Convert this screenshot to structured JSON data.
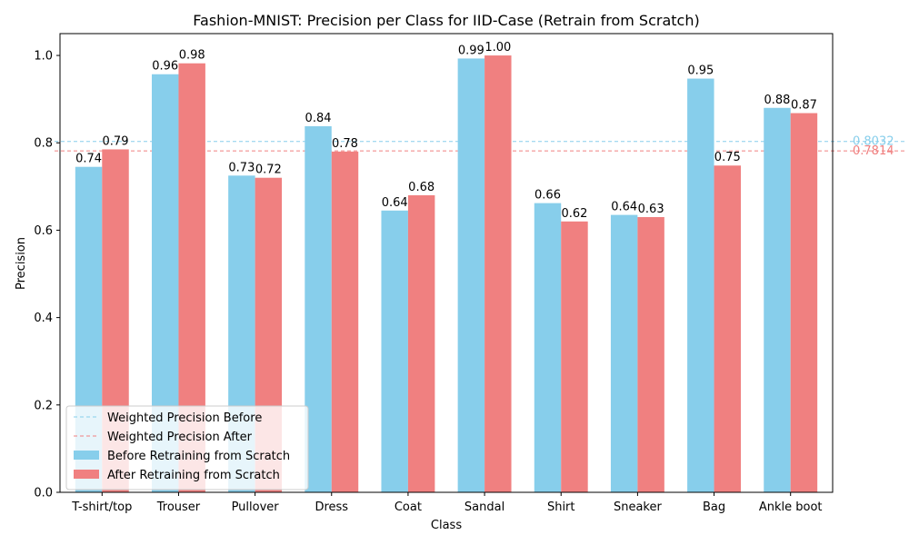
{
  "chart_data": {
    "type": "bar",
    "title": "Fashion-MNIST: Precision per Class for IID-Case (Retrain from Scratch)",
    "xlabel": "Class",
    "ylabel": "Precision",
    "ylim": [
      0,
      1.05
    ],
    "yticks": [
      0.0,
      0.2,
      0.4,
      0.6,
      0.8,
      1.0
    ],
    "ytick_labels": [
      "0.0",
      "0.2",
      "0.4",
      "0.6",
      "0.8",
      "1.0"
    ],
    "categories": [
      "T-shirt/top",
      "Trouser",
      "Pullover",
      "Dress",
      "Coat",
      "Sandal",
      "Shirt",
      "Sneaker",
      "Bag",
      "Ankle boot"
    ],
    "series": [
      {
        "name": "Before Retraining from Scratch",
        "color": "#87ceeb",
        "values": [
          0.745,
          0.957,
          0.725,
          0.838,
          0.645,
          0.993,
          0.662,
          0.635,
          0.947,
          0.88
        ],
        "labels": [
          "0.74",
          "0.96",
          "0.73",
          "0.84",
          "0.64",
          "0.99",
          "0.66",
          "0.64",
          "0.95",
          "0.88"
        ]
      },
      {
        "name": "After Retraining from Scratch",
        "color": "#f08080",
        "values": [
          0.785,
          0.982,
          0.72,
          0.78,
          0.68,
          1.0,
          0.62,
          0.63,
          0.748,
          0.868
        ],
        "labels": [
          "0.79",
          "0.98",
          "0.72",
          "0.78",
          "0.68",
          "1.00",
          "0.62",
          "0.63",
          "0.75",
          "0.87"
        ]
      }
    ],
    "reference_lines": [
      {
        "name": "Weighted Precision Before",
        "value": 0.8032,
        "label": "0.8032",
        "color": "#87ceeb"
      },
      {
        "name": "Weighted Precision After",
        "value": 0.7814,
        "label": "0.7814",
        "color": "#f08080"
      }
    ],
    "legend_position": "lower-left",
    "grid": false
  }
}
